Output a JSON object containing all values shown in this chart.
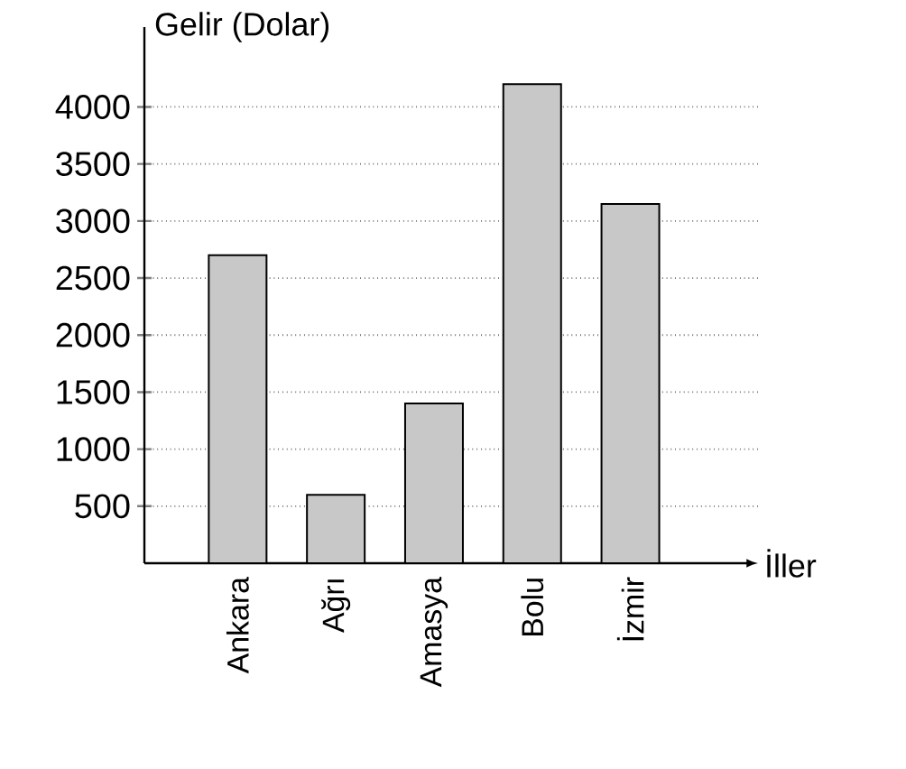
{
  "chart_data": {
    "type": "bar",
    "xlabel": "İller",
    "ylabel": "Gelir (Dolar)",
    "categories": [
      "Ankara",
      "Ağrı",
      "Amasya",
      "Bolu",
      "İzmir"
    ],
    "values": [
      2700,
      600,
      1400,
      4200,
      3150
    ],
    "color": "#c8c8c8",
    "ylim": [
      0,
      4700
    ],
    "yticks": [
      500,
      1000,
      1500,
      2000,
      2500,
      3000,
      3500,
      4000
    ],
    "grid": "y"
  }
}
